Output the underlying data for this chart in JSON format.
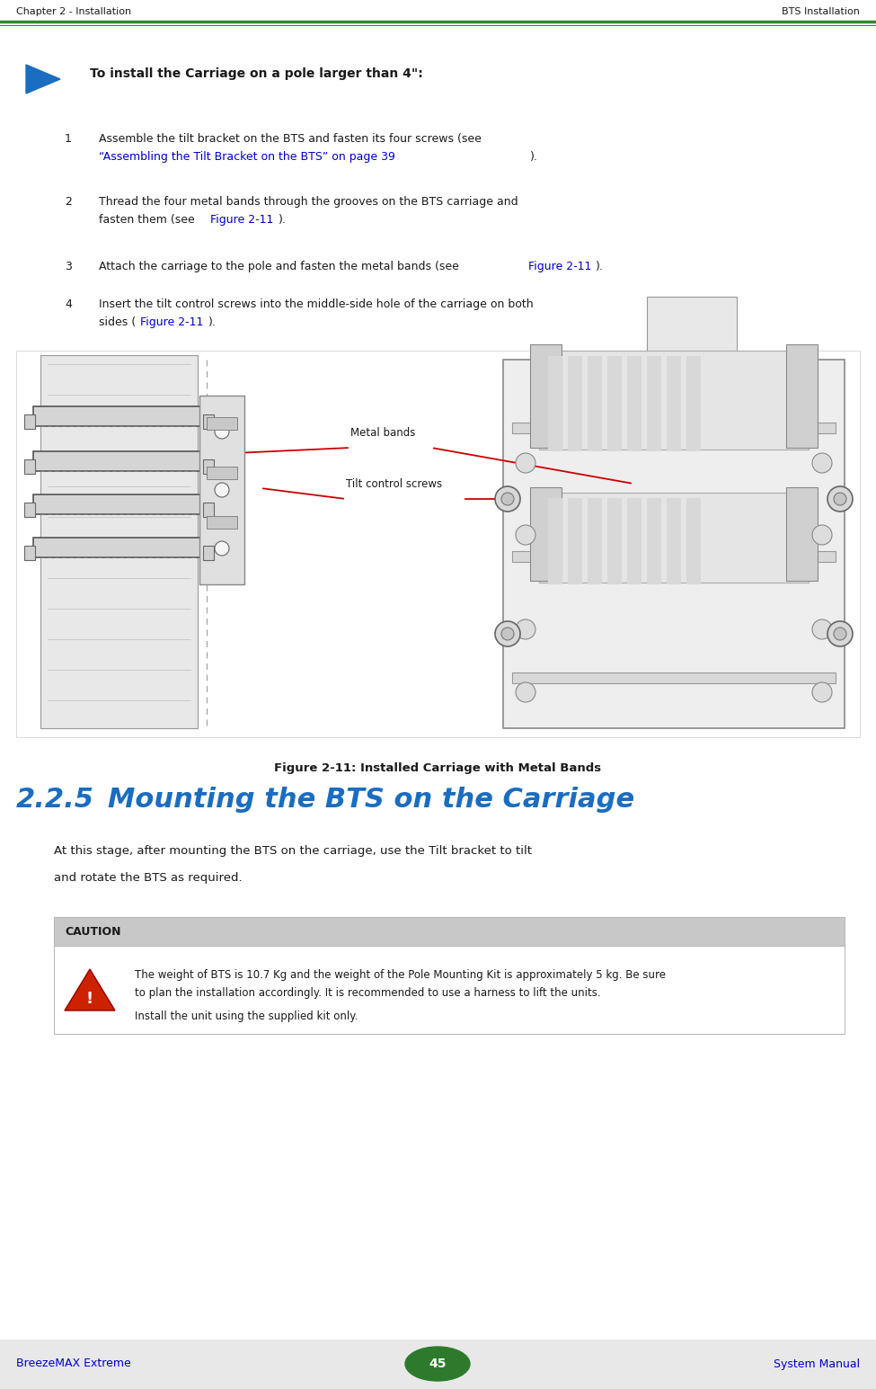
{
  "page_width": 9.75,
  "page_height": 15.45,
  "bg_color": "#ffffff",
  "header_left": "Chapter 2 - Installation",
  "header_right": "BTS Installation",
  "header_line_color": "#2d8a2d",
  "footer_left": "BreezeMAX Extreme",
  "footer_center": "45",
  "footer_right": "System Manual",
  "footer_bg": "#e8e8e8",
  "footer_oval_color": "#2d7a2d",
  "procedure_header": "To install the Carriage on a pole larger than 4\":",
  "arrow_color": "#1a6dc0",
  "figure_caption": "Figure 2-11: Installed Carriage with Metal Bands",
  "label_metal_bands": "Metal bands",
  "label_tilt_screws": "Tilt control screws",
  "label_line_color": "#cc0000",
  "section_number": "2.2.5",
  "section_title": "Mounting the BTS on the Carriage",
  "section_color": "#1a6dc0",
  "caution_label": "CAUTION",
  "caution_text1": "The weight of BTS is 10.7 Kg and the weight of the Pole Mounting Kit is approximately 5 kg. Be sure",
  "caution_text1b": "to plan the installation accordingly. It is recommended to use a harness to lift the units.",
  "caution_text2": "Install the unit using the supplied kit only.",
  "warn_color": "#cc2200"
}
